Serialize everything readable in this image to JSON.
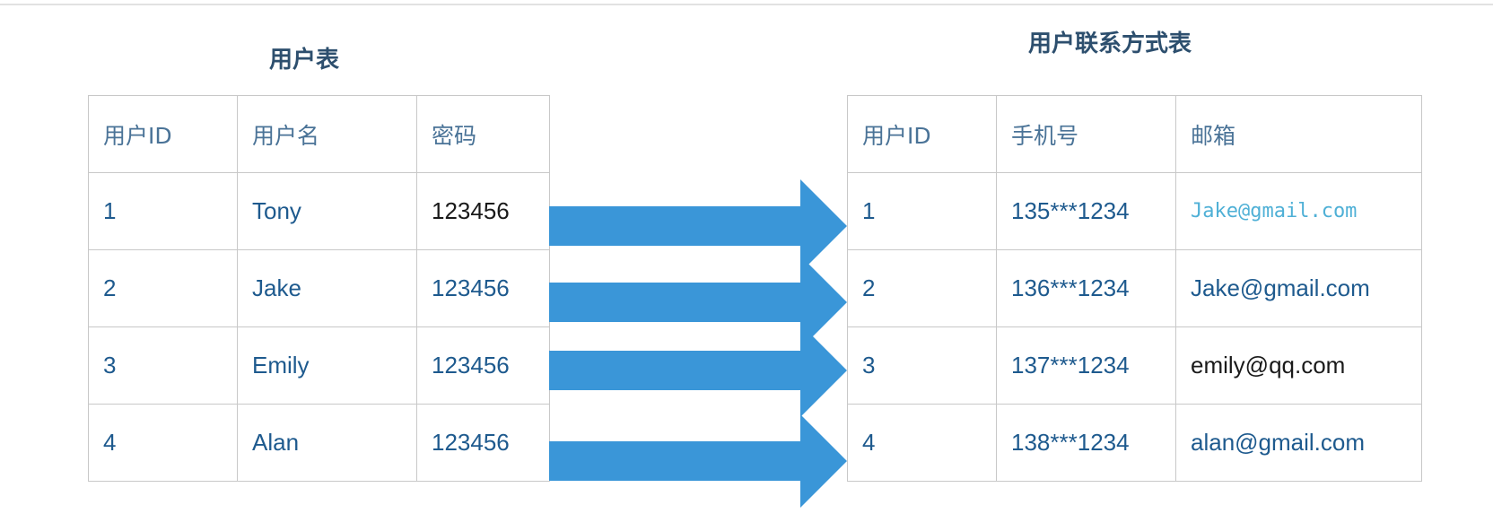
{
  "diagram": {
    "left_table": {
      "title": "用户表",
      "headers": [
        "用户ID",
        "用户名",
        "密码"
      ],
      "rows": [
        [
          "1",
          "Tony",
          "123456"
        ],
        [
          "2",
          "Jake",
          "123456"
        ],
        [
          "3",
          "Emily",
          "123456"
        ],
        [
          "4",
          "Alan",
          "123456"
        ]
      ]
    },
    "right_table": {
      "title": "用户联系方式表",
      "headers": [
        "用户ID",
        "手机号",
        "邮箱"
      ],
      "rows": [
        [
          "1",
          "135***1234",
          "Jake@gmail.com"
        ],
        [
          "2",
          "136***1234",
          "Jake@gmail.com"
        ],
        [
          "3",
          "137***1234",
          "emily@qq.com"
        ],
        [
          "4",
          "138***1234",
          "alan@gmail.com"
        ]
      ]
    },
    "colors": {
      "arrow": "#3a96d8",
      "cell_text": "#1e5a8e",
      "header_text": "#4a7397",
      "title_text": "#2d4f6e",
      "border": "#c8c8c8"
    }
  }
}
